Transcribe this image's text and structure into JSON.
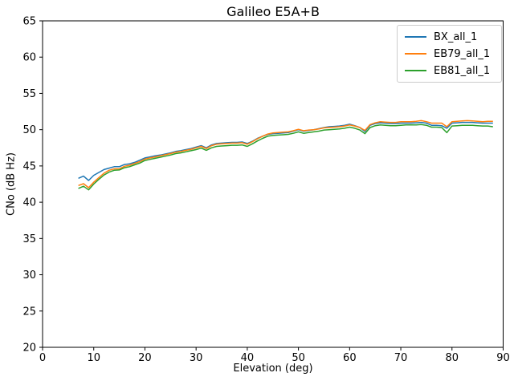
{
  "chart_data": {
    "type": "line",
    "title": "Galileo E5A+B",
    "xlabel": "Elevation (deg)",
    "ylabel": "CNo (dB Hz)",
    "xlim": [
      0,
      90
    ],
    "ylim": [
      20,
      65
    ],
    "xticks": [
      0,
      10,
      20,
      30,
      40,
      50,
      60,
      70,
      80,
      90
    ],
    "yticks": [
      20,
      25,
      30,
      35,
      40,
      45,
      50,
      55,
      60,
      65
    ],
    "grid": false,
    "legend_position": "upper right",
    "x": [
      7,
      8,
      9,
      10,
      11,
      12,
      13,
      14,
      15,
      16,
      17,
      18,
      19,
      20,
      21,
      22,
      23,
      24,
      25,
      26,
      27,
      28,
      29,
      30,
      31,
      32,
      33,
      34,
      35,
      36,
      37,
      38,
      39,
      40,
      41,
      42,
      43,
      44,
      45,
      46,
      47,
      48,
      49,
      50,
      51,
      52,
      53,
      54,
      55,
      56,
      57,
      58,
      59,
      60,
      61,
      62,
      63,
      64,
      65,
      66,
      67,
      68,
      69,
      70,
      71,
      72,
      73,
      74,
      75,
      76,
      77,
      78,
      79,
      80,
      81,
      82,
      83,
      84,
      85,
      86,
      87,
      88
    ],
    "series": [
      {
        "name": "BX_all_1",
        "color": "#1f77b4",
        "values": [
          43.3,
          43.6,
          43.0,
          43.7,
          44.1,
          44.5,
          44.7,
          44.9,
          44.9,
          45.2,
          45.3,
          45.5,
          45.8,
          46.1,
          46.25,
          46.4,
          46.5,
          46.65,
          46.8,
          47.0,
          47.1,
          47.25,
          47.4,
          47.6,
          47.8,
          47.5,
          47.9,
          48.1,
          48.15,
          48.2,
          48.25,
          48.25,
          48.3,
          48.1,
          48.4,
          48.8,
          49.1,
          49.35,
          49.45,
          49.5,
          49.55,
          49.6,
          49.8,
          50.0,
          49.8,
          49.9,
          50.0,
          50.15,
          50.3,
          50.4,
          50.45,
          50.5,
          50.6,
          50.75,
          50.55,
          50.3,
          49.75,
          50.6,
          50.85,
          50.95,
          50.9,
          50.85,
          50.85,
          50.9,
          50.9,
          50.9,
          50.95,
          51.0,
          50.9,
          50.6,
          50.6,
          50.55,
          50.2,
          50.9,
          50.95,
          51.0,
          51.0,
          51.0,
          50.95,
          50.9,
          50.9,
          50.9
        ]
      },
      {
        "name": "EB79_all_1",
        "color": "#ff7f0e",
        "values": [
          42.3,
          42.55,
          42.0,
          42.75,
          43.4,
          44.0,
          44.4,
          44.6,
          44.6,
          44.95,
          45.1,
          45.35,
          45.6,
          45.95,
          46.1,
          46.25,
          46.4,
          46.55,
          46.7,
          46.9,
          47.0,
          47.15,
          47.3,
          47.5,
          47.7,
          47.4,
          47.8,
          48.0,
          48.05,
          48.1,
          48.15,
          48.15,
          48.2,
          48.0,
          48.35,
          48.75,
          49.1,
          49.4,
          49.55,
          49.6,
          49.65,
          49.7,
          49.85,
          50.05,
          49.85,
          49.95,
          50.0,
          50.1,
          50.25,
          50.3,
          50.35,
          50.4,
          50.5,
          50.65,
          50.5,
          50.3,
          49.9,
          50.7,
          50.95,
          51.1,
          51.05,
          51.0,
          51.0,
          51.1,
          51.1,
          51.1,
          51.15,
          51.25,
          51.1,
          50.9,
          50.9,
          50.9,
          50.4,
          51.1,
          51.15,
          51.2,
          51.25,
          51.2,
          51.15,
          51.1,
          51.15,
          51.15
        ]
      },
      {
        "name": "EB81_all_1",
        "color": "#2ca02c",
        "values": [
          41.9,
          42.2,
          41.7,
          42.5,
          43.15,
          43.75,
          44.15,
          44.4,
          44.45,
          44.75,
          44.9,
          45.15,
          45.4,
          45.75,
          45.9,
          46.05,
          46.2,
          46.35,
          46.5,
          46.7,
          46.8,
          46.95,
          47.1,
          47.25,
          47.45,
          47.15,
          47.5,
          47.7,
          47.75,
          47.8,
          47.85,
          47.85,
          47.9,
          47.7,
          48.05,
          48.45,
          48.8,
          49.1,
          49.2,
          49.25,
          49.3,
          49.35,
          49.5,
          49.7,
          49.5,
          49.6,
          49.7,
          49.8,
          49.95,
          50.0,
          50.05,
          50.1,
          50.2,
          50.35,
          50.2,
          49.95,
          49.45,
          50.3,
          50.55,
          50.65,
          50.6,
          50.55,
          50.55,
          50.6,
          50.65,
          50.65,
          50.65,
          50.7,
          50.6,
          50.35,
          50.35,
          50.3,
          49.6,
          50.5,
          50.55,
          50.6,
          50.6,
          50.6,
          50.55,
          50.5,
          50.5,
          50.4
        ]
      }
    ]
  }
}
